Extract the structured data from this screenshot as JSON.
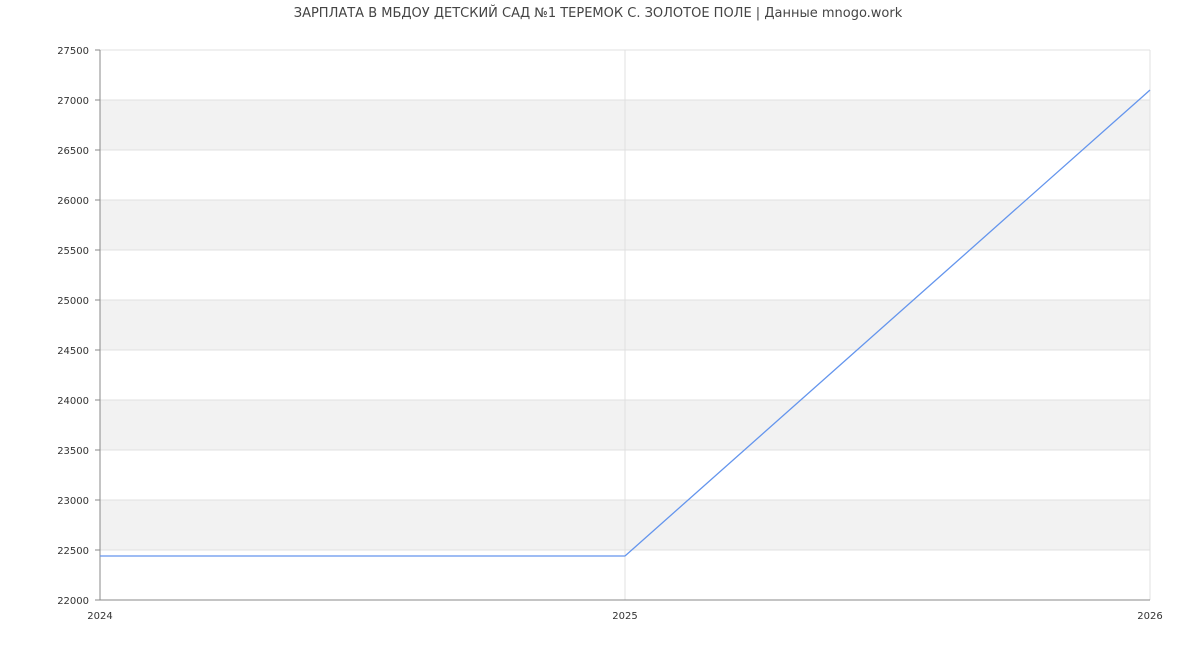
{
  "chart_data": {
    "type": "line",
    "title": "ЗАРПЛАТА В МБДОУ ДЕТСКИЙ САД №1 ТЕРЕМОК С. ЗОЛОТОЕ ПОЛЕ | Данные mnogo.work",
    "xlabel": "",
    "ylabel": "",
    "x": [
      2024,
      2025,
      2026
    ],
    "series": [
      {
        "values": [
          22440,
          22440,
          27100
        ],
        "color": "#6495ed"
      }
    ],
    "xlim": [
      2024,
      2026
    ],
    "ylim": [
      22000,
      27500
    ],
    "xticks": [
      "2024",
      "2025",
      "2026"
    ],
    "yticks": [
      "22000",
      "22500",
      "23000",
      "23500",
      "24000",
      "24500",
      "25000",
      "25500",
      "26000",
      "26500",
      "27000",
      "27500"
    ],
    "grid": true,
    "band_color": "#f2f2f2"
  }
}
